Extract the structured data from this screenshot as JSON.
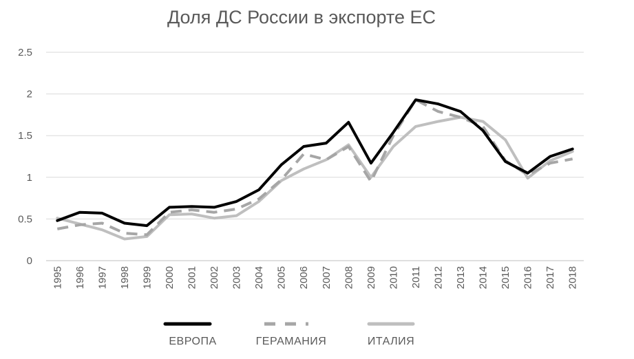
{
  "chart_data": {
    "type": "line",
    "title": "Доля ДС России в экспорте ЕС",
    "xlabel": "",
    "ylabel": "",
    "ylim": [
      0,
      2.5
    ],
    "yticks": [
      "0",
      "0.5",
      "1",
      "1.5",
      "2",
      "2.5"
    ],
    "grid": true,
    "legend_position": "bottom",
    "categories": [
      "1995",
      "1996",
      "1997",
      "1998",
      "1999",
      "2000",
      "2001",
      "2002",
      "2003",
      "2004",
      "2005",
      "2006",
      "2007",
      "2008",
      "2009",
      "2010",
      "2011",
      "2012",
      "2013",
      "2014",
      "2015",
      "2016",
      "2017",
      "2018"
    ],
    "series": [
      {
        "name": "ЕВРОПА",
        "color": "#000000",
        "style": "solid",
        "values": [
          0.48,
          0.58,
          0.57,
          0.45,
          0.42,
          0.64,
          0.65,
          0.64,
          0.71,
          0.85,
          1.15,
          1.37,
          1.41,
          1.66,
          1.17,
          1.54,
          1.93,
          1.88,
          1.79,
          1.56,
          1.19,
          1.05,
          1.25,
          1.34
        ]
      },
      {
        "name": "ГЕРАМАНИЯ",
        "color": "#a6a6a6",
        "style": "dashed",
        "values": [
          0.38,
          0.43,
          0.45,
          0.33,
          0.31,
          0.58,
          0.61,
          0.58,
          0.62,
          0.74,
          0.97,
          1.28,
          1.21,
          1.37,
          0.95,
          1.5,
          1.93,
          1.79,
          1.72,
          1.61,
          1.2,
          1.03,
          1.17,
          1.22
        ]
      },
      {
        "name": "ИТАЛИЯ",
        "color": "#bfbfbf",
        "style": "solid",
        "values": [
          0.51,
          0.44,
          0.37,
          0.26,
          0.29,
          0.55,
          0.56,
          0.51,
          0.54,
          0.71,
          0.96,
          1.1,
          1.21,
          1.39,
          1.0,
          1.37,
          1.61,
          1.67,
          1.72,
          1.67,
          1.45,
          0.99,
          1.2,
          1.31
        ]
      }
    ]
  }
}
